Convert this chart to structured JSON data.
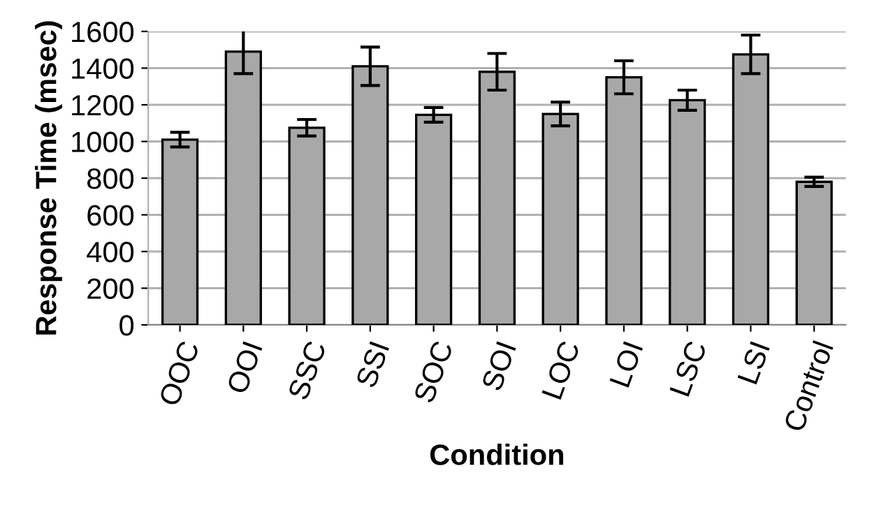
{
  "chart_data": {
    "type": "bar",
    "xlabel": "Condition",
    "ylabel": "Response Time (msec)",
    "categories": [
      "OOC",
      "OOI",
      "SSC",
      "SSI",
      "SOC",
      "SOI",
      "LOC",
      "LOI",
      "LSC",
      "LSI",
      "Control"
    ],
    "values": [
      1010,
      1490,
      1075,
      1410,
      1145,
      1380,
      1150,
      1350,
      1225,
      1475,
      780
    ],
    "errors": [
      40,
      120,
      45,
      105,
      40,
      100,
      65,
      90,
      55,
      105,
      25
    ],
    "color": "#a8a8a8",
    "ylim": [
      0,
      1600
    ],
    "yticks": [
      0,
      200,
      400,
      600,
      800,
      1000,
      1200,
      1400,
      1600
    ],
    "grid": "y",
    "legend": false
  }
}
